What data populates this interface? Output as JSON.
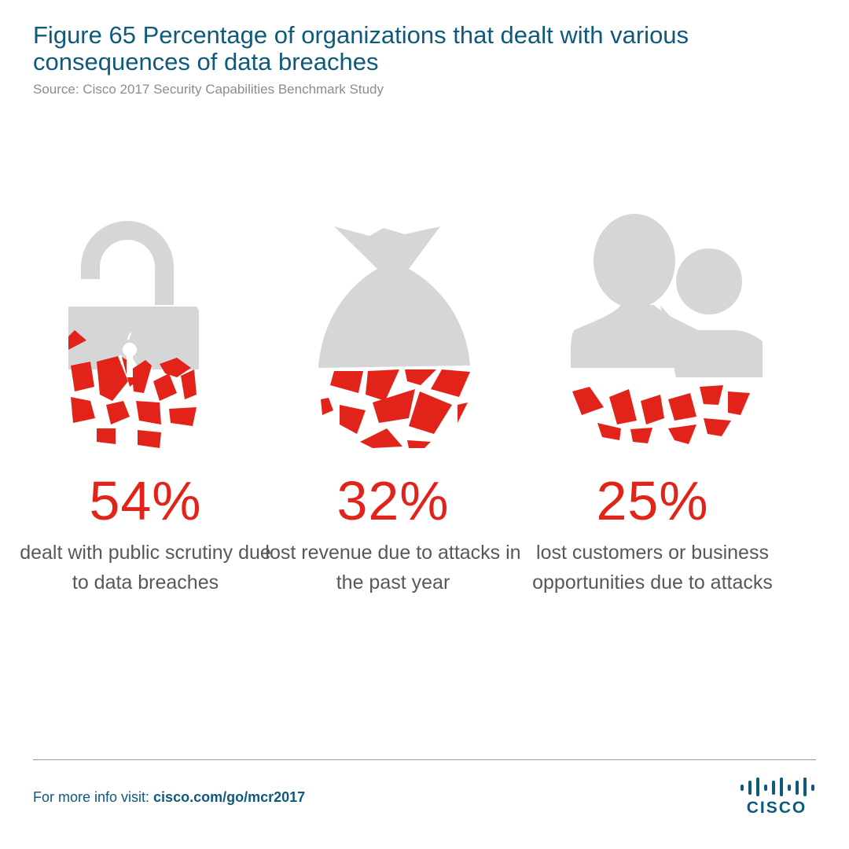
{
  "header": {
    "title": "Figure 65  Percentage of organizations that dealt with various consequences of data breaches",
    "source": "Source: Cisco 2017 Security Capabilities Benchmark Study"
  },
  "chart_data": {
    "type": "table",
    "title": "Figure 65  Percentage of organizations that dealt with various consequences of data breaches",
    "unit": "%",
    "items": [
      {
        "label": "dealt with public scrutiny due to data breaches",
        "value": 54,
        "display": "54%",
        "icon": "broken-padlock-icon"
      },
      {
        "label": "lost revenue due to attacks in the past year",
        "value": 32,
        "display": "32%",
        "icon": "broken-money-bag-icon"
      },
      {
        "label": "lost customers or business opportunities due to attacks",
        "value": 25,
        "display": "25%",
        "icon": "broken-people-icon"
      }
    ],
    "colors": {
      "accent": "#e2231a",
      "icon_gray": "#d5d6d8",
      "text": "#58585a",
      "title": "#0e5a7c"
    }
  },
  "footer": {
    "prefix": "For more info visit: ",
    "url": "cisco.com/go/mcr2017",
    "logo": "CISCO"
  }
}
